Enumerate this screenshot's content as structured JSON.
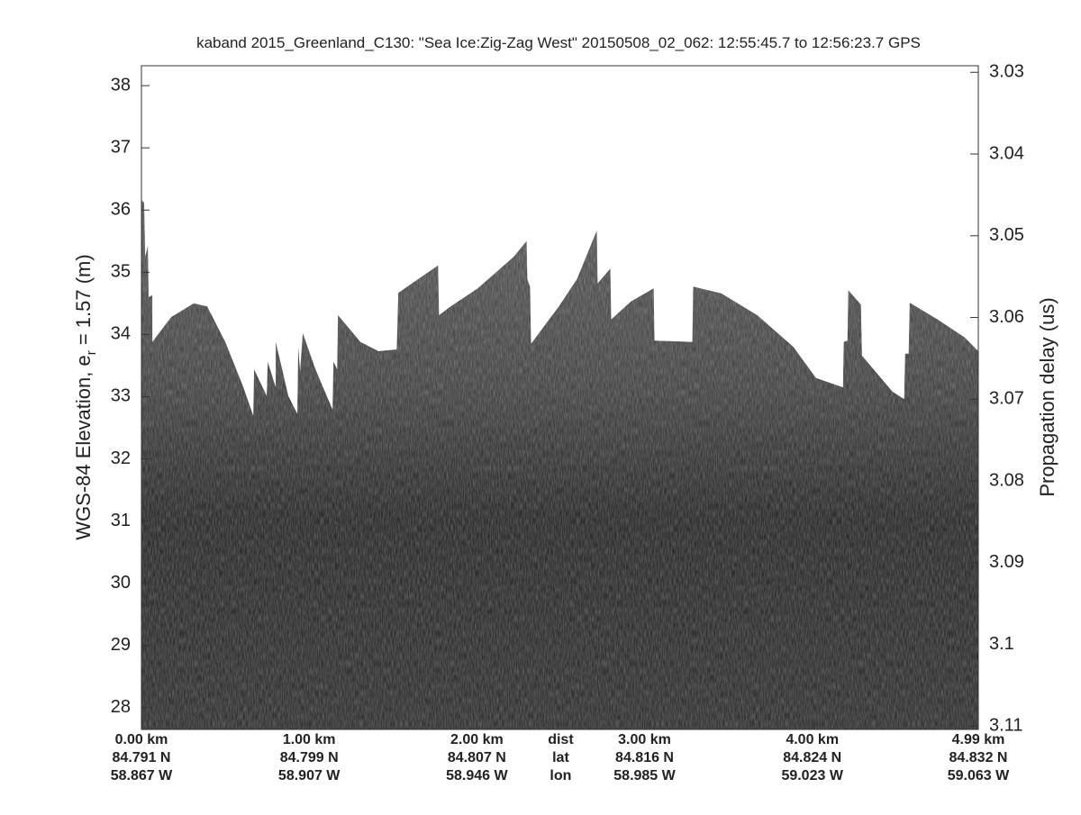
{
  "chart_data": {
    "type": "echogram",
    "title": "kaband 2015_Greenland_C130: \"Sea Ice:Zig-Zag West\"  20150508_02_062: 12:55:45.7 to 12:56:23.7 GPS",
    "ylabel": {
      "text": "WGS-84 Elevation, e",
      "subscript": "r",
      "suffix": " = 1.57 (m)"
    },
    "y2label": "Propagation delay (us)",
    "xlim": [
      0,
      4.99
    ],
    "xticks": [
      {
        "value": 0,
        "label": "0.00 km"
      },
      {
        "value": 1,
        "label": "1.00 km"
      },
      {
        "value": 2,
        "label": "2.00 km"
      },
      {
        "value": 3,
        "label": "3.00 km"
      },
      {
        "value": 4,
        "label": "4.00 km"
      },
      {
        "value": 4.99,
        "label": "4.99 km"
      }
    ],
    "xtick_lat": [
      "84.791 N",
      "84.799 N",
      "84.807 N",
      "84.816 N",
      "84.824 N",
      "84.832 N"
    ],
    "xtick_lon": [
      "58.867 W",
      "58.907 W",
      "58.946 W",
      "58.985 W",
      "59.023 W",
      "59.063 W"
    ],
    "xtick_row_names": [
      "dist",
      "lat",
      "lon"
    ],
    "ylim": [
      27.65,
      38.32
    ],
    "yticks": [
      28,
      29,
      30,
      31,
      32,
      33,
      34,
      35,
      36,
      37,
      38
    ],
    "y2lim": [
      3.0292,
      3.1104
    ],
    "y2ticks": [
      3.03,
      3.04,
      3.05,
      3.06,
      3.07,
      3.08,
      3.09,
      3.1,
      3.11
    ],
    "grid": false,
    "surface": {
      "name": "surface",
      "x": [
        0,
        0.016,
        0.022,
        0.038,
        0.043,
        0.065,
        0.065,
        0.177,
        0.312,
        0.392,
        0.5,
        0.608,
        0.667,
        0.672,
        0.747,
        0.753,
        0.801,
        0.801,
        0.876,
        0.93,
        0.935,
        0.946,
        0.962,
        1.038,
        1.14,
        1.145,
        1.167,
        1.172,
        1.306,
        1.414,
        1.522,
        1.532,
        1.769,
        1.774,
        1.844,
        2.005,
        2.22,
        2.296,
        2.301,
        2.317,
        2.323,
        2.489,
        2.597,
        2.715,
        2.72,
        2.796,
        2.801,
        2.919,
        3.054,
        3.059,
        3.285,
        3.29,
        3.457,
        3.672,
        3.887,
        4.022,
        4.183,
        4.188,
        4.21,
        4.215,
        4.29,
        4.296,
        4.478,
        4.548,
        4.554,
        4.575,
        4.581,
        4.747,
        4.909,
        4.99
      ],
      "values": [
        36.16,
        36.12,
        35.25,
        35.42,
        34.6,
        34.63,
        33.88,
        34.28,
        34.5,
        34.45,
        33.88,
        33.15,
        32.69,
        33.44,
        33.01,
        33.56,
        33.15,
        33.88,
        33.01,
        32.72,
        33.8,
        33.4,
        34.02,
        33.44,
        32.79,
        33.56,
        33.44,
        34.31,
        33.88,
        33.73,
        33.76,
        34.67,
        35.11,
        34.31,
        34.45,
        34.74,
        35.25,
        35.5,
        34.89,
        34.77,
        33.85,
        34.45,
        34.89,
        35.67,
        34.82,
        35.06,
        34.24,
        34.53,
        34.74,
        33.9,
        33.88,
        34.77,
        34.66,
        34.31,
        33.8,
        33.3,
        33.15,
        33.88,
        33.9,
        34.71,
        34.48,
        33.66,
        33.08,
        32.96,
        33.69,
        33.69,
        34.51,
        34.24,
        33.95,
        33.73
      ]
    }
  }
}
